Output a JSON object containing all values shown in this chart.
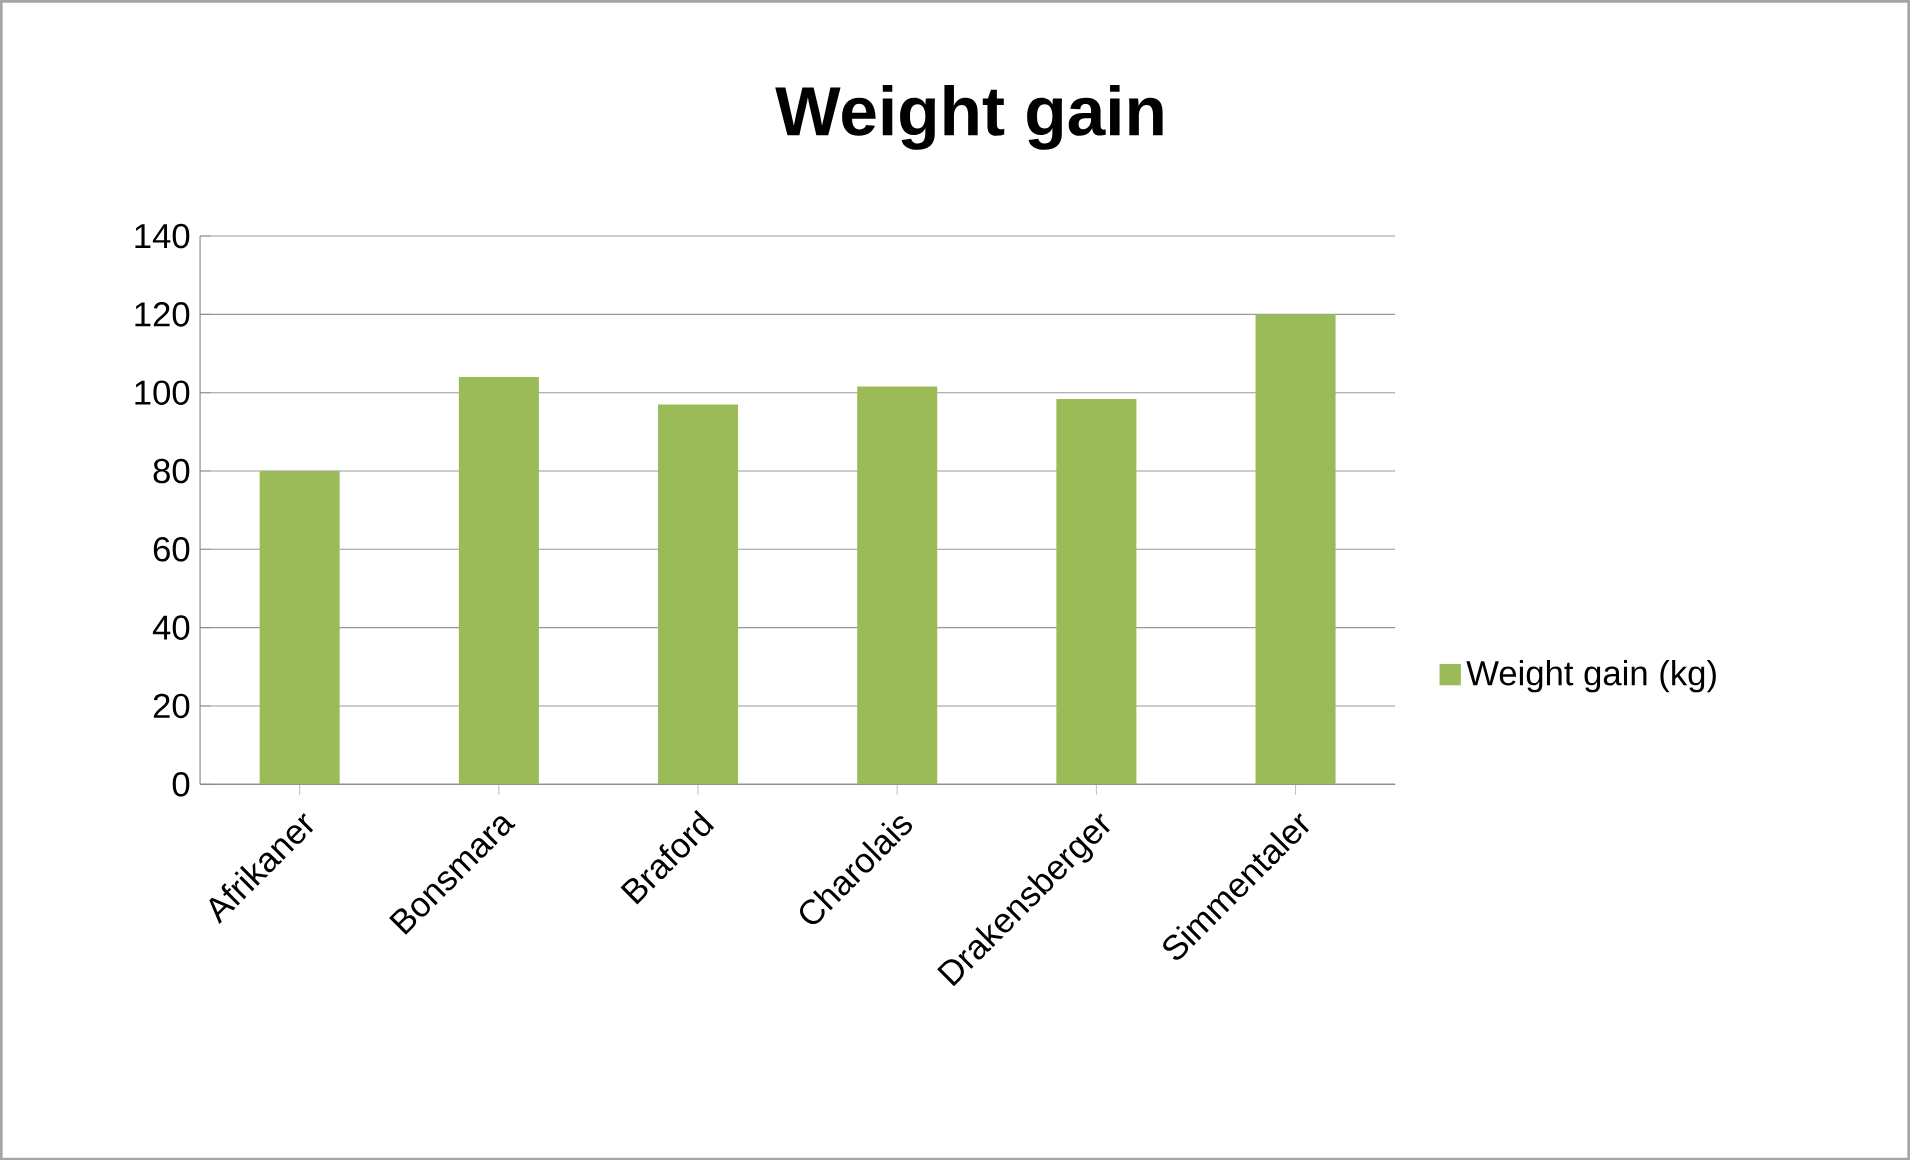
{
  "chart_data": {
    "type": "bar",
    "title": "Weight gain",
    "categories": [
      "Afrikaner",
      "Bonsmara",
      "Braford",
      "Charolais",
      "Drakensberger",
      "Simmentaler"
    ],
    "series": [
      {
        "name": "Weight gain (kg)",
        "color": "#9bbb59",
        "values": [
          80,
          104,
          97,
          101.6,
          98.4,
          120
        ]
      }
    ],
    "ylim": [
      0,
      140
    ],
    "yticks": [
      0,
      20,
      40,
      60,
      80,
      100,
      120,
      140
    ],
    "grid": "y",
    "legend": "right"
  }
}
